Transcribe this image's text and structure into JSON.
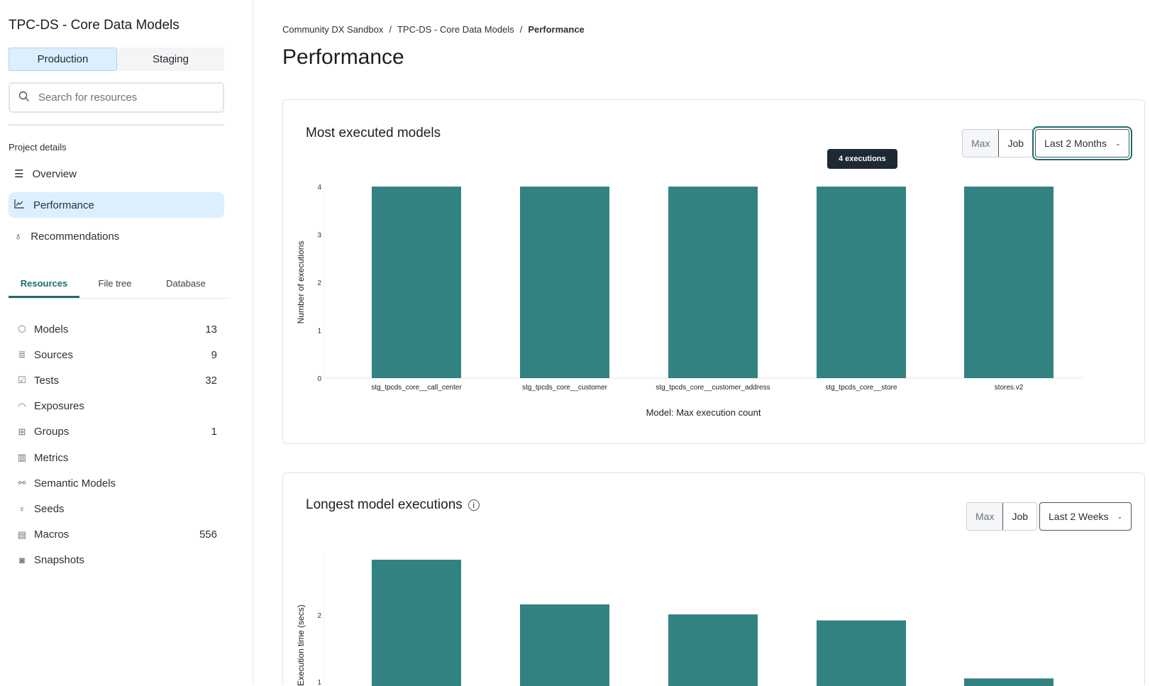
{
  "sidebar": {
    "project_title": "TPC-DS - Core Data Models",
    "environments": [
      "Production",
      "Staging"
    ],
    "active_environment": "Production",
    "search_placeholder": "Search for resources",
    "section_label": "Project details",
    "nav": [
      {
        "label": "Overview",
        "icon": "list-icon"
      },
      {
        "label": "Performance",
        "icon": "line-chart-icon",
        "active": true
      },
      {
        "label": "Recommendations",
        "icon": "lightbulb-icon"
      }
    ],
    "tabs": [
      "Resources",
      "File tree",
      "Database"
    ],
    "active_tab": "Resources",
    "resources": [
      {
        "label": "Models",
        "count": "13",
        "icon": "cube-icon"
      },
      {
        "label": "Sources",
        "count": "9",
        "icon": "database-icon"
      },
      {
        "label": "Tests",
        "count": "32",
        "icon": "clipboard-check-icon"
      },
      {
        "label": "Exposures",
        "count": "",
        "icon": "gauge-icon"
      },
      {
        "label": "Groups",
        "count": "1",
        "icon": "grid-icon"
      },
      {
        "label": "Metrics",
        "count": "",
        "icon": "bar-chart-icon"
      },
      {
        "label": "Semantic Models",
        "count": "",
        "icon": "graph-nodes-icon"
      },
      {
        "label": "Seeds",
        "count": "",
        "icon": "sprout-icon"
      },
      {
        "label": "Macros",
        "count": "556",
        "icon": "document-icon"
      },
      {
        "label": "Snapshots",
        "count": "",
        "icon": "camera-icon"
      }
    ]
  },
  "breadcrumb": [
    "Community DX Sandbox",
    "TPC-DS - Core Data Models",
    "Performance"
  ],
  "page_title": "Performance",
  "cards": [
    {
      "title": "Most executed models",
      "toggle": [
        "Max",
        "Job"
      ],
      "range": "Last 2 Months",
      "tooltip": "4 executions"
    },
    {
      "title": "Longest model executions",
      "toggle": [
        "Max",
        "Job"
      ],
      "range": "Last 2 Weeks"
    }
  ],
  "accent": "#338282",
  "chart_data": [
    {
      "type": "bar",
      "categories": [
        "stg_tpcds_core__call_center",
        "stg_tpcds_core__customer",
        "stg_tpcds_core__customer_address",
        "stg_tpcds_core__store",
        "stores.v2"
      ],
      "values": [
        4,
        4,
        4,
        4,
        4
      ],
      "xlabel": "Model: Max execution count",
      "ylabel": "Number of executions",
      "ylim": [
        0,
        4
      ],
      "yticks": [
        0,
        1,
        2,
        3,
        4
      ]
    },
    {
      "type": "bar",
      "values": [
        2.83,
        2.16,
        2.01,
        1.92,
        1.05
      ],
      "ylabel": "Execution time (secs)",
      "yticks": [
        1,
        2
      ]
    }
  ]
}
